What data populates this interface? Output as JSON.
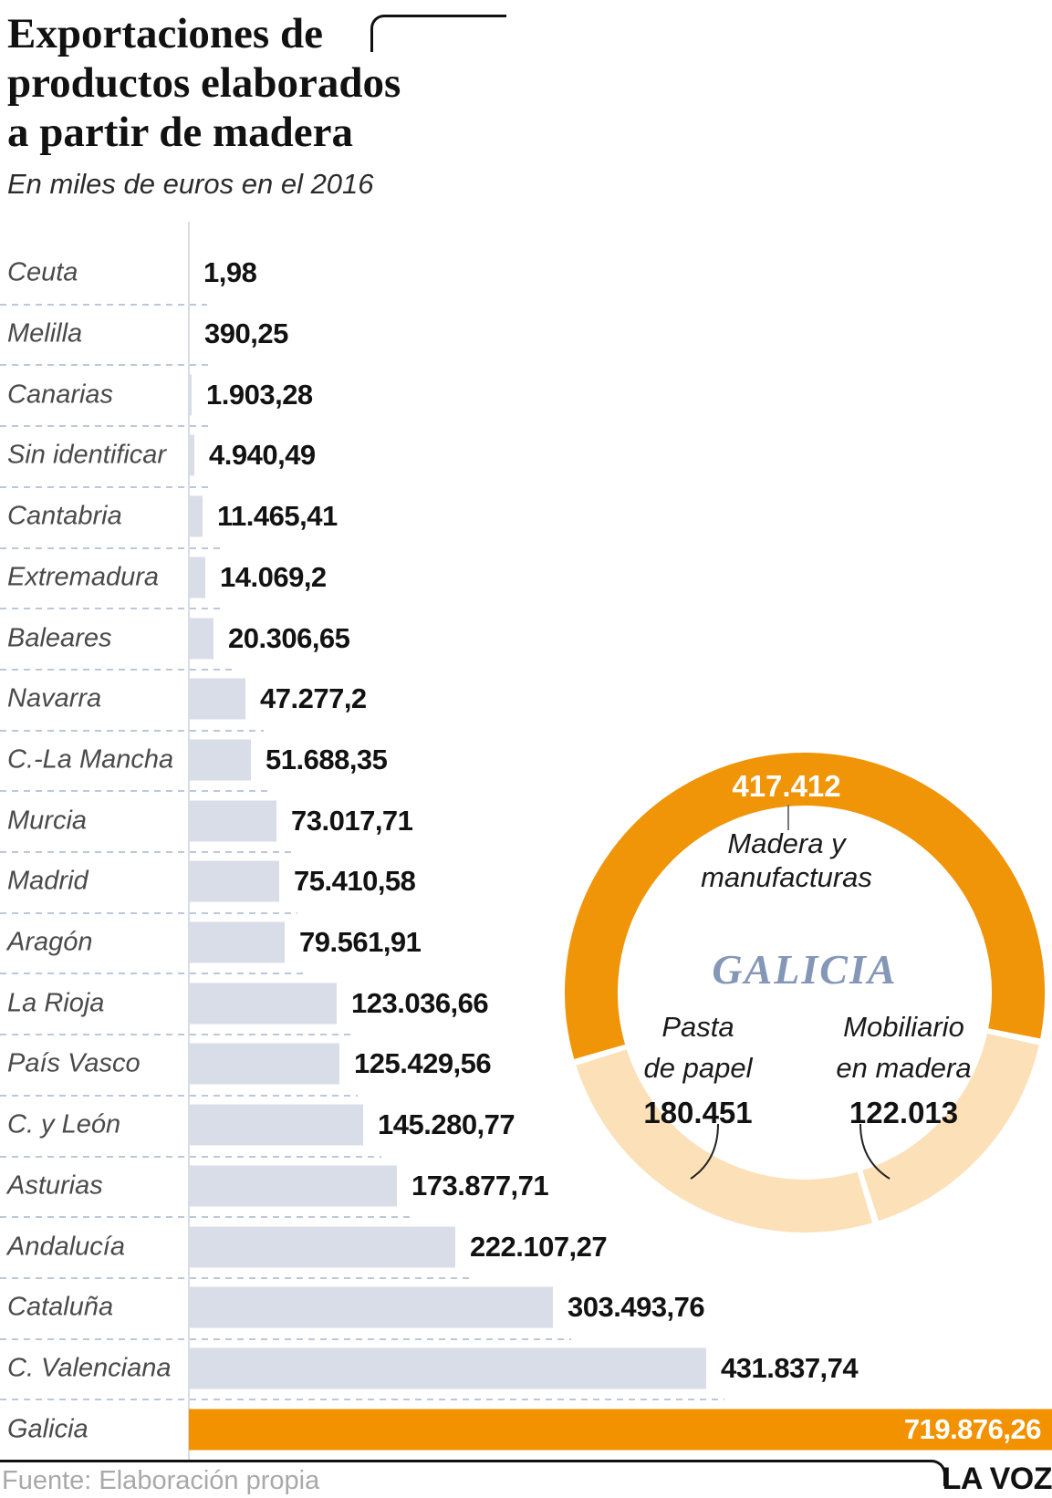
{
  "title": {
    "lines": [
      "Exportaciones de",
      "productos elaborados",
      "a partir de madera"
    ]
  },
  "subtitle": "En miles de euros en el 2016",
  "footer": {
    "source": "Fuente: Elaboración propia",
    "brand": "LA VOZ"
  },
  "chart_data": [
    {
      "type": "bar",
      "orientation": "horizontal",
      "title": "Exportaciones de productos elaborados a partir de madera",
      "unit": "miles de euros",
      "year": 2016,
      "categories": [
        "Ceuta",
        "Melilla",
        "Canarias",
        "Sin identificar",
        "Cantabria",
        "Extremadura",
        "Baleares",
        "Navarra",
        "C.-La Mancha",
        "Murcia",
        "Madrid",
        "Aragón",
        "La Rioja",
        "País Vasco",
        "C. y León",
        "Asturias",
        "Andalucía",
        "Cataluña",
        "C. Valenciana",
        "Galicia"
      ],
      "values": [
        1.98,
        390.25,
        1903.28,
        4940.49,
        11465.41,
        14069.2,
        20306.65,
        47277.2,
        51688.35,
        73017.71,
        75410.58,
        79561.91,
        123036.66,
        125429.56,
        145280.77,
        173877.71,
        222107.27,
        303493.76,
        431837.74,
        719876.26
      ],
      "value_labels": [
        "1,98",
        "390,25",
        "1.903,28",
        "4.940,49",
        "11.465,41",
        "14.069,2",
        "20.306,65",
        "47.277,2",
        "51.688,35",
        "73.017,71",
        "75.410,58",
        "79.561,91",
        "123.036,66",
        "125.429,56",
        "145.280,77",
        "173.877,71",
        "222.107,27",
        "303.493,76",
        "431.837,74",
        "719.876,26"
      ],
      "xlim": [
        0,
        719876.26
      ],
      "grid": "dashed-row-separators",
      "highlight_category": "Galicia",
      "colors": {
        "bar": "#d9dde8",
        "highlight": "#f29200"
      }
    },
    {
      "type": "pie",
      "subtype": "donut",
      "center_label": "GALICIA",
      "center_label_color": "#8497b7",
      "start_angle_deg": 253.1,
      "segments": [
        {
          "label": "Madera y manufacturas",
          "label_lines": [
            "Madera y",
            "manufacturas"
          ],
          "value": 417412,
          "value_label": "417.412",
          "color": "#f09408"
        },
        {
          "label": "Mobiliario en madera",
          "label_lines": [
            "Mobiliario",
            "en madera"
          ],
          "value": 122013,
          "value_label": "122.013",
          "color": "#fce0b8"
        },
        {
          "label": "Pasta de papel",
          "label_lines": [
            "Pasta",
            "de papel"
          ],
          "value": 180451,
          "value_label": "180.451",
          "color": "#fce0b8"
        }
      ]
    }
  ]
}
